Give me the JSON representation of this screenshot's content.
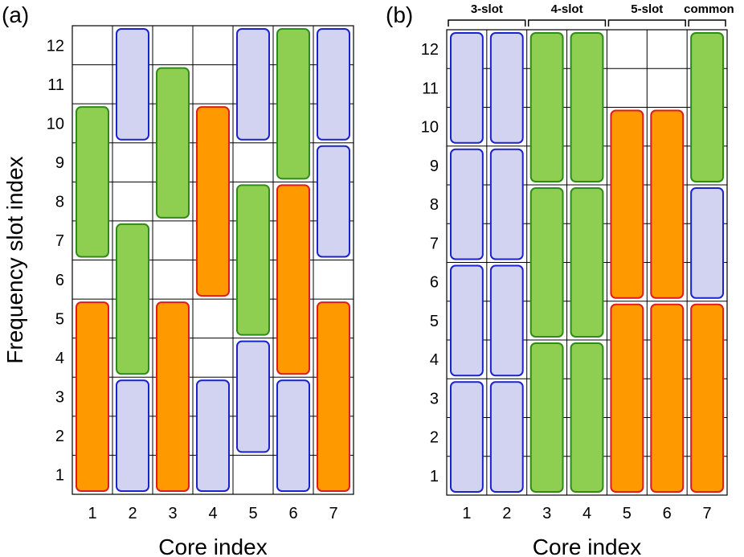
{
  "panels": [
    {
      "label": "(a)",
      "xlabel": "Core index",
      "ylabel": "Frequency slot index",
      "cores": [
        1,
        2,
        3,
        4,
        5,
        6,
        7
      ],
      "slots": [
        1,
        2,
        3,
        4,
        5,
        6,
        7,
        8,
        9,
        10,
        11,
        12
      ],
      "groups": [],
      "blocks": [
        {
          "core": 1,
          "from": 1,
          "to": 5,
          "type": "5-slot"
        },
        {
          "core": 1,
          "from": 7,
          "to": 10,
          "type": "4-slot"
        },
        {
          "core": 2,
          "from": 1,
          "to": 3,
          "type": "3-slot"
        },
        {
          "core": 2,
          "from": 4,
          "to": 7,
          "type": "4-slot"
        },
        {
          "core": 2,
          "from": 10,
          "to": 12,
          "type": "3-slot"
        },
        {
          "core": 3,
          "from": 1,
          "to": 5,
          "type": "5-slot"
        },
        {
          "core": 3,
          "from": 8,
          "to": 11,
          "type": "4-slot"
        },
        {
          "core": 4,
          "from": 1,
          "to": 3,
          "type": "3-slot"
        },
        {
          "core": 4,
          "from": 6,
          "to": 10,
          "type": "5-slot"
        },
        {
          "core": 5,
          "from": 2,
          "to": 4,
          "type": "3-slot"
        },
        {
          "core": 5,
          "from": 5,
          "to": 8,
          "type": "4-slot"
        },
        {
          "core": 5,
          "from": 10,
          "to": 12,
          "type": "3-slot"
        },
        {
          "core": 6,
          "from": 1,
          "to": 3,
          "type": "3-slot"
        },
        {
          "core": 6,
          "from": 4,
          "to": 8,
          "type": "5-slot"
        },
        {
          "core": 6,
          "from": 9,
          "to": 12,
          "type": "4-slot"
        },
        {
          "core": 7,
          "from": 1,
          "to": 5,
          "type": "5-slot"
        },
        {
          "core": 7,
          "from": 7,
          "to": 9,
          "type": "3-slot"
        },
        {
          "core": 7,
          "from": 10,
          "to": 12,
          "type": "3-slot"
        }
      ]
    },
    {
      "label": "(b)",
      "xlabel": "Core index",
      "ylabel": "",
      "cores": [
        1,
        2,
        3,
        4,
        5,
        6,
        7
      ],
      "slots": [
        1,
        2,
        3,
        4,
        5,
        6,
        7,
        8,
        9,
        10,
        11,
        12
      ],
      "groups": [
        {
          "label": "3-slot",
          "core_from": 1,
          "core_to": 2
        },
        {
          "label": "4-slot",
          "core_from": 3,
          "core_to": 4
        },
        {
          "label": "5-slot",
          "core_from": 5,
          "core_to": 6
        },
        {
          "label": "common",
          "core_from": 7,
          "core_to": 7
        }
      ],
      "blocks": [
        {
          "core": 1,
          "from": 1,
          "to": 3,
          "type": "3-slot"
        },
        {
          "core": 1,
          "from": 4,
          "to": 6,
          "type": "3-slot"
        },
        {
          "core": 1,
          "from": 7,
          "to": 9,
          "type": "3-slot"
        },
        {
          "core": 1,
          "from": 10,
          "to": 12,
          "type": "3-slot"
        },
        {
          "core": 2,
          "from": 1,
          "to": 3,
          "type": "3-slot"
        },
        {
          "core": 2,
          "from": 4,
          "to": 6,
          "type": "3-slot"
        },
        {
          "core": 2,
          "from": 7,
          "to": 9,
          "type": "3-slot"
        },
        {
          "core": 2,
          "from": 10,
          "to": 12,
          "type": "3-slot"
        },
        {
          "core": 3,
          "from": 1,
          "to": 4,
          "type": "4-slot"
        },
        {
          "core": 3,
          "from": 5,
          "to": 8,
          "type": "4-slot"
        },
        {
          "core": 3,
          "from": 9,
          "to": 12,
          "type": "4-slot"
        },
        {
          "core": 4,
          "from": 1,
          "to": 4,
          "type": "4-slot"
        },
        {
          "core": 4,
          "from": 5,
          "to": 8,
          "type": "4-slot"
        },
        {
          "core": 4,
          "from": 9,
          "to": 12,
          "type": "4-slot"
        },
        {
          "core": 5,
          "from": 1,
          "to": 5,
          "type": "5-slot"
        },
        {
          "core": 5,
          "from": 6,
          "to": 10,
          "type": "5-slot"
        },
        {
          "core": 6,
          "from": 1,
          "to": 5,
          "type": "5-slot"
        },
        {
          "core": 6,
          "from": 6,
          "to": 10,
          "type": "5-slot"
        },
        {
          "core": 7,
          "from": 1,
          "to": 5,
          "type": "5-slot"
        },
        {
          "core": 7,
          "from": 6,
          "to": 8,
          "type": "3-slot"
        },
        {
          "core": 7,
          "from": 9,
          "to": 12,
          "type": "4-slot"
        }
      ]
    }
  ],
  "styles": {
    "3-slot": {
      "fill": "#d2d3f0",
      "stroke": "#1a22cc"
    },
    "4-slot": {
      "fill": "#8ecf52",
      "stroke": "#2e8b1a"
    },
    "5-slot": {
      "fill": "#ff9900",
      "stroke": "#e01b1b"
    }
  }
}
